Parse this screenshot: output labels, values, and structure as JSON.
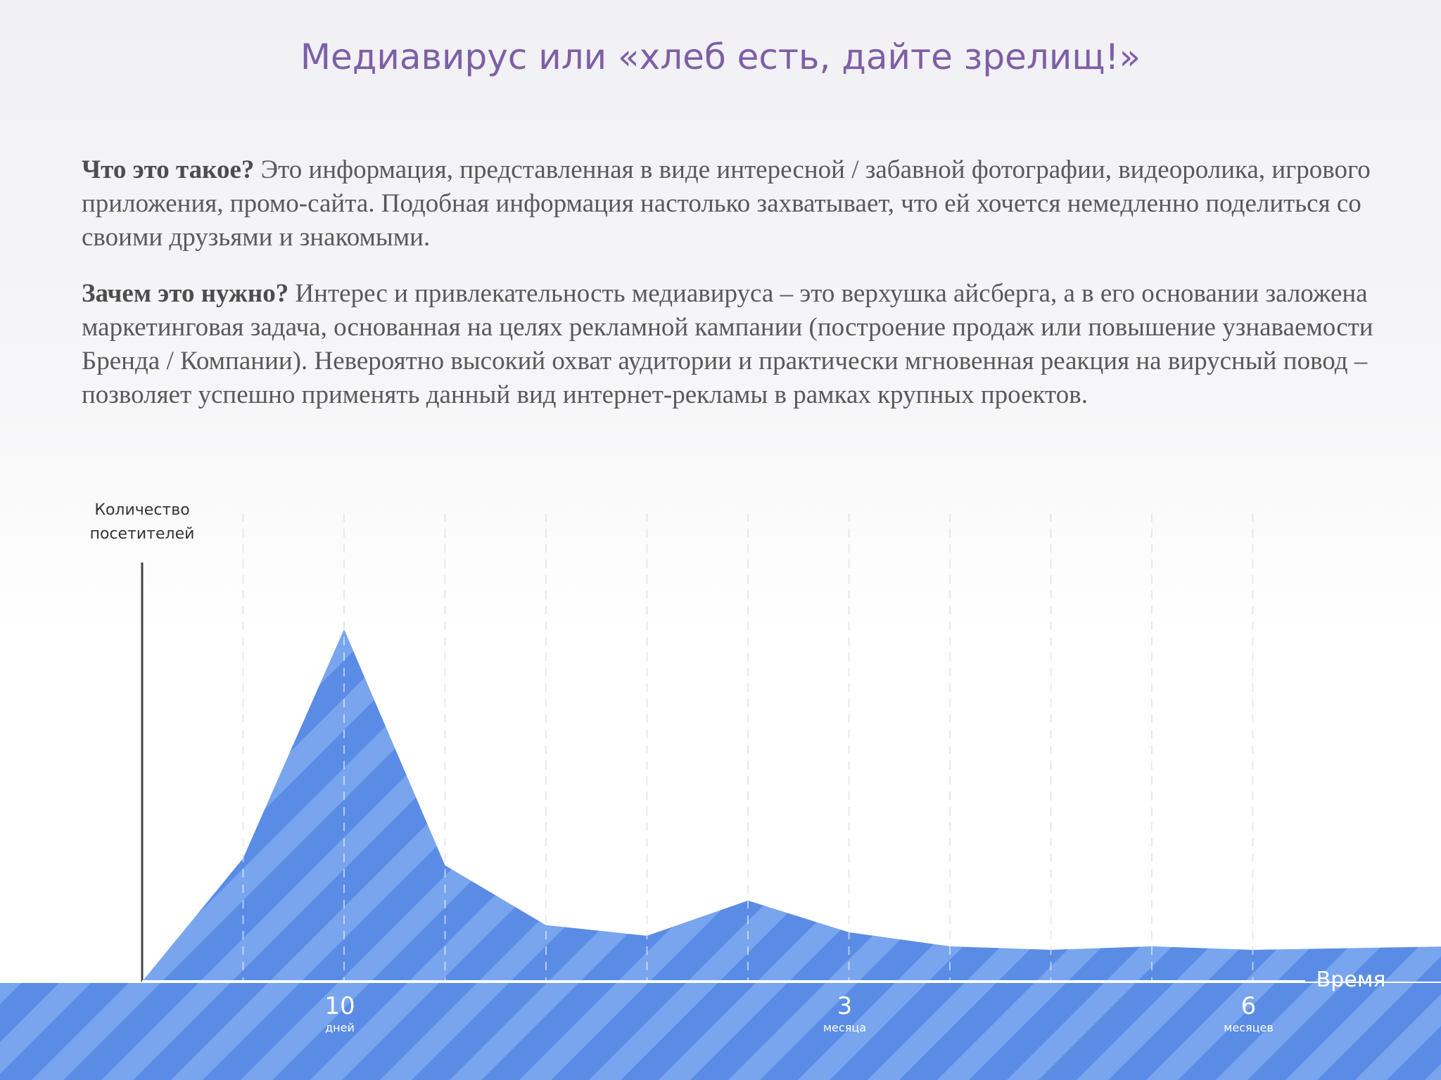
{
  "slide": {
    "title": "Медиавирус или «хлеб есть, дайте зрелищ!»",
    "paragraphs": [
      {
        "lead": "Что это такое?",
        "text": " Это информация, представленная в виде интересной / забавной фотографии, видеоролика, игрового приложения, промо-сайта. Подобная информация настолько захватывает, что ей хочется немедленно поделиться со своими друзьями и знакомыми."
      },
      {
        "lead": "Зачем это нужно?",
        "text": " Интерес и привлекательность медиавируса – это верхушка айсберга, а в его основании заложена маркетинговая задача, основанная на целях рекламной кампании (построение продаж или повышение узнаваемости Бренда / Компании). Невероятно высокий охват аудитории и практически мгновенная реакция на вирусный повод – позволяет успешно применять данный вид интернет-рекламы в рамках крупных проектов."
      }
    ]
  },
  "colors": {
    "area_fill": "#5a8ce6",
    "stripe": "#78a5ee",
    "axis": "#444444",
    "baseline": "#ffffff",
    "grid": "#c9ccd6",
    "title": "#7d5fa7"
  },
  "chart_data": {
    "type": "area",
    "ylabel_lines": [
      "Количество",
      "посетителей"
    ],
    "xlabel": "Время",
    "x": [
      0,
      1,
      2,
      3,
      4,
      5,
      6,
      7,
      8,
      9,
      10,
      11,
      12,
      13
    ],
    "values": [
      0,
      35,
      100,
      33,
      16,
      13,
      23,
      14,
      10,
      9,
      10,
      9,
      9.5,
      10
    ],
    "grid_x": [
      1,
      2,
      3,
      4,
      5,
      6,
      7,
      8,
      9,
      10,
      11
    ],
    "grid": true,
    "ticks": [
      {
        "x": 2,
        "value": "10",
        "unit": "дней"
      },
      {
        "x": 7,
        "value": "3",
        "unit": "месяца"
      },
      {
        "x": 11,
        "value": "6",
        "unit": "месяцев"
      }
    ],
    "ylim": [
      0,
      100
    ]
  }
}
